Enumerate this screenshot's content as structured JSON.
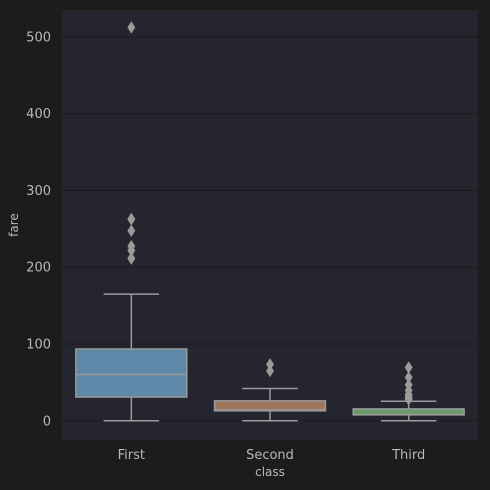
{
  "colors": {
    "figure_bg": "#1c1c1c",
    "plot_bg": "#24252e",
    "grid": "#1b1b1b",
    "text": "#b8b8b8",
    "box_edge": "#9b9b9b",
    "first": "#5f87a8",
    "second": "#a0765a",
    "third": "#6a9a66"
  },
  "chart_data": {
    "type": "box",
    "xlabel": "class",
    "ylabel": "fare",
    "categories": [
      "First",
      "Second",
      "Third"
    ],
    "ylim": [
      -25,
      535
    ],
    "yticks": [
      0,
      100,
      200,
      300,
      400,
      500
    ],
    "grid": true,
    "boxes": [
      {
        "name": "First",
        "color": "#5f87a8",
        "whisker_low": 0,
        "q1": 30.9,
        "median": 60.3,
        "q3": 93.5,
        "whisker_high": 164.9,
        "outliers": [
          512.3,
          263.0,
          262.4,
          247.5,
          227.5,
          221.8,
          211.5,
          211.3
        ]
      },
      {
        "name": "Second",
        "color": "#a0765a",
        "whisker_low": 0,
        "q1": 13.0,
        "median": 14.25,
        "q3": 26.0,
        "whisker_high": 42.0,
        "outliers": [
          73.5,
          65.0
        ]
      },
      {
        "name": "Third",
        "color": "#6a9a66",
        "whisker_low": 0,
        "q1": 7.75,
        "median": 8.05,
        "q3": 15.5,
        "whisker_high": 25.5,
        "outliers": [
          69.55,
          56.5,
          46.9,
          39.7,
          34.4,
          31.3,
          29.1,
          27.9
        ]
      }
    ]
  }
}
